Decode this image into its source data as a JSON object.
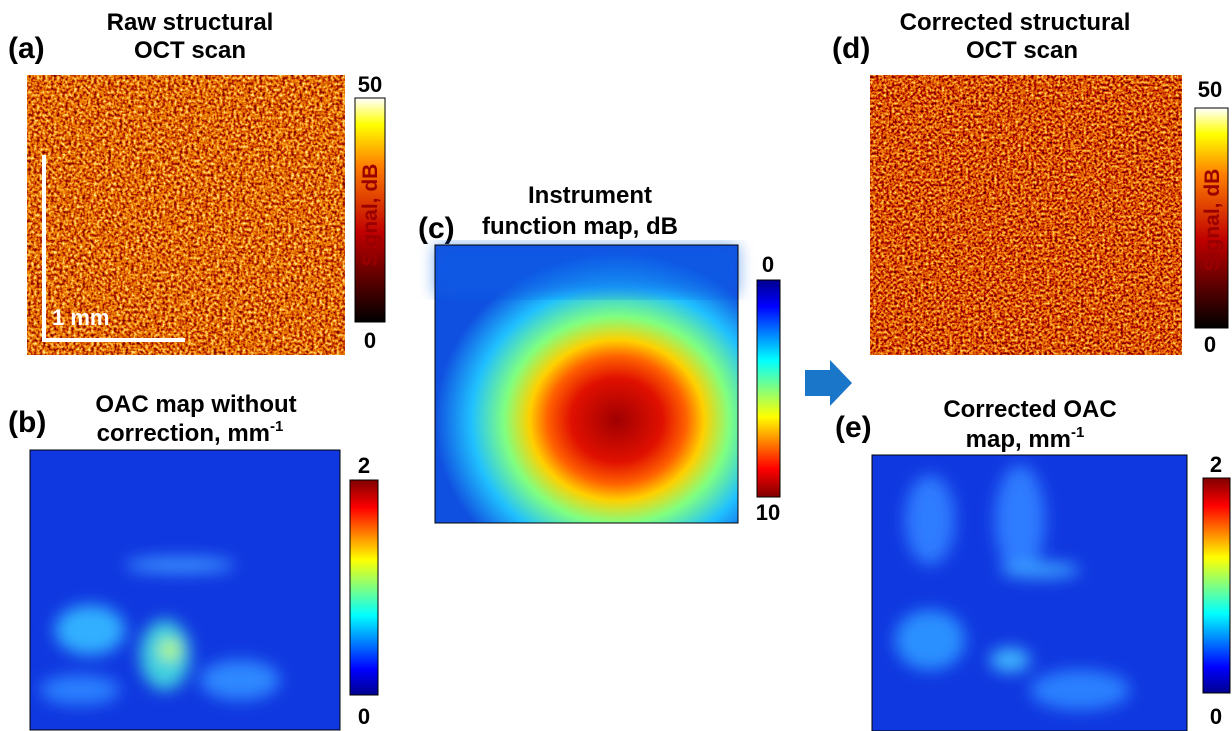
{
  "panels": [
    {
      "label": "(a)",
      "title": [
        "Raw structural",
        "OCT scan"
      ],
      "colorbar": {
        "max": "50",
        "min": "0",
        "label": "Signal, dB"
      },
      "scale_bar": "1 mm"
    },
    {
      "label": "(b)",
      "title": [
        "OAC map without",
        "correction, mm"
      ],
      "title_superscript": "-1",
      "colorbar": {
        "max": "2",
        "min": "0"
      }
    },
    {
      "label": "(c)",
      "title": [
        "Instrument",
        "function map, dB"
      ],
      "colorbar": {
        "max": "0",
        "min": "10"
      }
    },
    {
      "label": "(d)",
      "title": [
        "Corrected structural",
        "OCT scan"
      ],
      "colorbar": {
        "max": "50",
        "min": "0",
        "label": "Signal, dB"
      }
    },
    {
      "label": "(e)",
      "title": [
        "Corrected OAC",
        "map, mm"
      ],
      "title_superscript": "-1",
      "colorbar": {
        "max": "2",
        "min": "0"
      }
    }
  ]
}
